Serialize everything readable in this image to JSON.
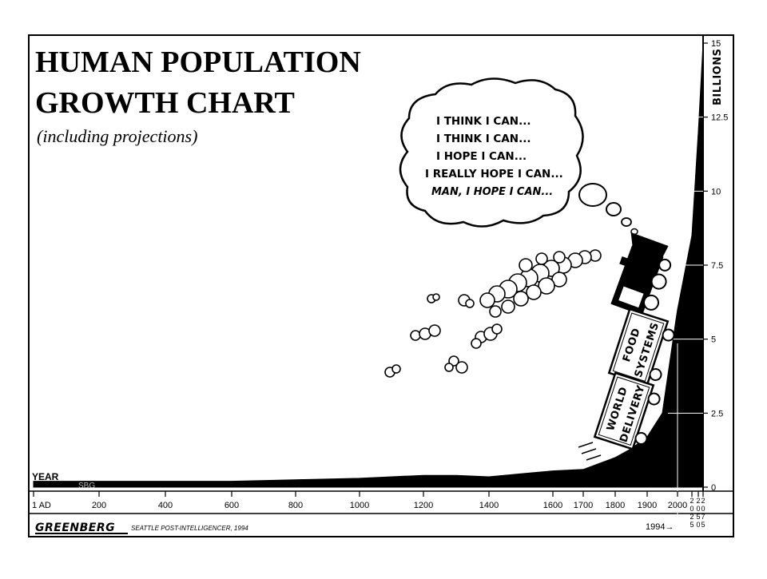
{
  "chart_data": {
    "type": "area",
    "title_line1": "HUMAN POPULATION",
    "title_line2": "GROWTH CHART",
    "subtitle": "(including projections)",
    "xlabel": "YEAR",
    "ylabel": "BILLIONS",
    "x_ticks": [
      "1 AD",
      "200",
      "400",
      "600",
      "800",
      "1000",
      "1200",
      "1400",
      "1600",
      "1700",
      "1800",
      "1900",
      "2000"
    ],
    "x_ticks_vertical": [
      "2025",
      "2050",
      "2075"
    ],
    "y_ticks": [
      "0",
      "2.5",
      "5",
      "7.5",
      "10",
      "12.5",
      "15"
    ],
    "y_tick_values": [
      0,
      2.5,
      5,
      7.5,
      10,
      12.5,
      15
    ],
    "ylim": [
      0,
      15
    ],
    "x": [
      1,
      200,
      400,
      600,
      800,
      1000,
      1200,
      1300,
      1400,
      1500,
      1600,
      1700,
      1750,
      1800,
      1850,
      1900,
      1950,
      1994,
      2000,
      2025,
      2050,
      2075
    ],
    "values": [
      0.2,
      0.2,
      0.2,
      0.2,
      0.25,
      0.3,
      0.4,
      0.4,
      0.35,
      0.45,
      0.55,
      0.6,
      0.8,
      1.0,
      1.3,
      1.7,
      2.5,
      5.6,
      6.0,
      8.5,
      12.0,
      15.0
    ],
    "marker_label": "1994→",
    "grid": false,
    "legend": "none",
    "colors": {
      "fill": "#000000",
      "background": "#ffffff",
      "ink": "#000000"
    }
  },
  "cartoon": {
    "thought_lines": [
      "I THINK I CAN...",
      "I THINK I CAN...",
      "I HOPE I CAN...",
      "I REALLY HOPE I CAN...",
      "MAN, I HOPE I CAN..."
    ],
    "car1_line1": "FOOD",
    "car1_line2": "SYSTEMS",
    "car2_line1": "WORLD",
    "car2_line2": "DELIVERY"
  },
  "credits": {
    "artist": "GREENBERG",
    "publication": "SEATTLE POST-INTELLIGENCER, 1994",
    "watermark": "SBG"
  }
}
